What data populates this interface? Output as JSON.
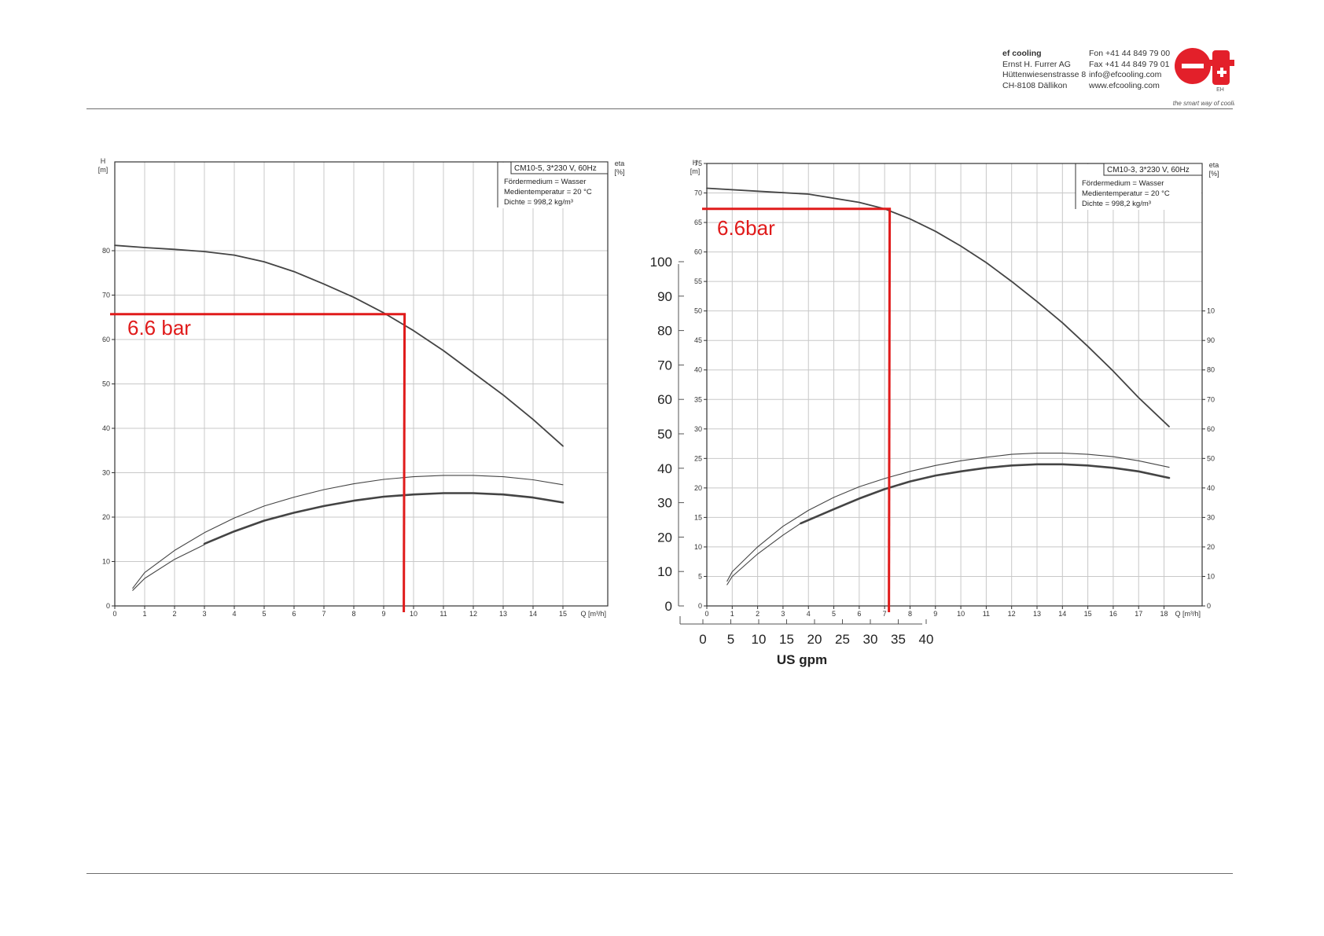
{
  "header": {
    "company_lines": [
      "ef cooling",
      "Ernst H. Furrer AG",
      "Hüttenwiesenstrasse 8",
      "CH-8108 Dällikon"
    ],
    "contact_lines": [
      "Fon +41 44 849 79 00",
      "Fax +41 44 849 79 01",
      "info@efcooling.com",
      "www.efcooling.com"
    ],
    "logo_text": "ef",
    "slogan": "the smart way of cooling!"
  },
  "colors": {
    "accent_red": "#e01b1b",
    "curve": "#444444",
    "grid": "#c8c8c8",
    "logo_red": "#e3202a"
  },
  "chart_data": [
    {
      "type": "line",
      "title": "CM10-5, 3*230 V, 60Hz",
      "info_lines": [
        "Fördermedium = Wasser",
        "Medientemperatur = 20 °C",
        "Dichte = 998,2 kg/m³"
      ],
      "ylabel": "H\n[m]",
      "ylabel_right": "eta\n[%]",
      "xlabel": "Q [m³/h]",
      "xlim": [
        0,
        16.5
      ],
      "ylim": [
        0,
        100
      ],
      "x_ticks": [
        0,
        1,
        2,
        3,
        4,
        5,
        6,
        7,
        8,
        9,
        10,
        11,
        12,
        13,
        14,
        15
      ],
      "y_ticks": [
        0,
        10,
        20,
        30,
        40,
        50,
        60,
        70,
        80
      ],
      "grid": true,
      "series": [
        {
          "role": "head",
          "style": "medium",
          "points": [
            [
              0,
              81.2
            ],
            [
              1,
              80.7
            ],
            [
              2,
              80.3
            ],
            [
              3,
              79.8
            ],
            [
              4,
              79
            ],
            [
              5,
              77.5
            ],
            [
              6,
              75.3
            ],
            [
              7,
              72.5
            ],
            [
              8,
              69.5
            ],
            [
              9,
              66
            ],
            [
              10,
              62
            ],
            [
              11,
              57.5
            ],
            [
              12,
              52.5
            ],
            [
              13,
              47.5
            ],
            [
              14,
              42
            ],
            [
              15,
              36
            ]
          ]
        },
        {
          "role": "efficiency",
          "style": "thin",
          "points": [
            [
              0.6,
              4
            ],
            [
              1,
              7.5
            ],
            [
              2,
              12.5
            ],
            [
              3,
              16.5
            ],
            [
              4,
              19.8
            ],
            [
              5,
              22.5
            ],
            [
              6,
              24.5
            ],
            [
              7,
              26.2
            ],
            [
              8,
              27.5
            ],
            [
              9,
              28.5
            ],
            [
              10,
              29.1
            ],
            [
              11,
              29.4
            ],
            [
              12,
              29.4
            ],
            [
              13,
              29.1
            ],
            [
              14,
              28.4
            ],
            [
              15,
              27.3
            ]
          ]
        },
        {
          "role": "efficiency",
          "style": "thick",
          "points": [
            [
              3,
              14
            ],
            [
              4,
              16.8
            ],
            [
              5,
              19.2
            ],
            [
              6,
              21
            ],
            [
              7,
              22.5
            ],
            [
              8,
              23.7
            ],
            [
              9,
              24.6
            ],
            [
              10,
              25.1
            ],
            [
              11,
              25.4
            ],
            [
              12,
              25.4
            ],
            [
              13,
              25.1
            ],
            [
              14,
              24.4
            ],
            [
              15,
              23.3
            ]
          ]
        },
        {
          "role": "efficiency",
          "style": "thin",
          "points": [
            [
              0.6,
              3.5
            ],
            [
              1,
              6.2
            ],
            [
              2,
              10.5
            ],
            [
              3,
              13.8
            ]
          ]
        }
      ],
      "annotation": {
        "label": "6.6 bar",
        "head_m": 65.7,
        "flow_m3h": 9.7
      }
    },
    {
      "type": "line",
      "title": "CM10-3, 3*230 V, 60Hz",
      "info_lines": [
        "Fördermedium = Wasser",
        "Medientemperatur = 20 °C",
        "Dichte = 998,2 kg/m³"
      ],
      "ylabel": "H\n[m]",
      "ylabel_right": "eta\n[%]",
      "xlabel": "Q [m³/h]",
      "xlim": [
        0,
        19.5
      ],
      "ylim": [
        0,
        75
      ],
      "x_ticks": [
        0,
        1,
        2,
        3,
        4,
        5,
        6,
        7,
        8,
        9,
        10,
        11,
        12,
        13,
        14,
        15,
        16,
        17,
        18
      ],
      "y_ticks": [
        0,
        5,
        10,
        15,
        20,
        25,
        30,
        35,
        40,
        45,
        50,
        55,
        60,
        65,
        70,
        75
      ],
      "eta_ticks": [
        0,
        10,
        20,
        30,
        40,
        50,
        60,
        70,
        80,
        90,
        "10"
      ],
      "grid": true,
      "series": [
        {
          "role": "head",
          "style": "medium",
          "points": [
            [
              0,
              70.8
            ],
            [
              2,
              70.3
            ],
            [
              4,
              69.8
            ],
            [
              6,
              68.4
            ],
            [
              7,
              67.3
            ],
            [
              8,
              65.6
            ],
            [
              9,
              63.5
            ],
            [
              10,
              61
            ],
            [
              11,
              58.2
            ],
            [
              12,
              55
            ],
            [
              13,
              51.6
            ],
            [
              14,
              48
            ],
            [
              15,
              44
            ],
            [
              16,
              39.8
            ],
            [
              17,
              35.3
            ],
            [
              18.2,
              30.4
            ]
          ]
        },
        {
          "role": "efficiency",
          "style": "thin",
          "points": [
            [
              0.8,
              4.2
            ],
            [
              1,
              5.8
            ],
            [
              2,
              10
            ],
            [
              3,
              13.5
            ],
            [
              4,
              16.2
            ],
            [
              5,
              18.4
            ],
            [
              6,
              20.2
            ],
            [
              7,
              21.6
            ],
            [
              8,
              22.8
            ],
            [
              9,
              23.8
            ],
            [
              10,
              24.6
            ],
            [
              11,
              25.2
            ],
            [
              12,
              25.7
            ],
            [
              13,
              25.9
            ],
            [
              14,
              25.9
            ],
            [
              15,
              25.7
            ],
            [
              16,
              25.3
            ],
            [
              17,
              24.6
            ],
            [
              18.2,
              23.5
            ]
          ]
        },
        {
          "role": "efficiency",
          "style": "thick",
          "points": [
            [
              3.7,
              14
            ],
            [
              5,
              16.4
            ],
            [
              6,
              18.2
            ],
            [
              7,
              19.8
            ],
            [
              8,
              21.1
            ],
            [
              9,
              22.1
            ],
            [
              10,
              22.8
            ],
            [
              11,
              23.4
            ],
            [
              12,
              23.8
            ],
            [
              13,
              24
            ],
            [
              14,
              24
            ],
            [
              15,
              23.8
            ],
            [
              16,
              23.4
            ],
            [
              17,
              22.8
            ],
            [
              18.2,
              21.7
            ]
          ]
        },
        {
          "role": "efficiency",
          "style": "thin",
          "points": [
            [
              0.8,
              3.6
            ],
            [
              1,
              5
            ],
            [
              2,
              8.8
            ],
            [
              3,
              12
            ],
            [
              3.7,
              14
            ]
          ]
        }
      ],
      "psi_axis": {
        "label": "psi",
        "ticks": [
          0,
          10,
          20,
          30,
          40,
          50,
          60,
          70,
          80,
          90,
          100
        ]
      },
      "gpm_axis": {
        "label": "US gpm",
        "ticks": [
          0,
          5,
          10,
          15,
          20,
          25,
          30,
          35,
          40
        ]
      },
      "annotation": {
        "label": "6.6bar",
        "head_m": 67.3,
        "flow_m3h": 7.2
      }
    }
  ]
}
